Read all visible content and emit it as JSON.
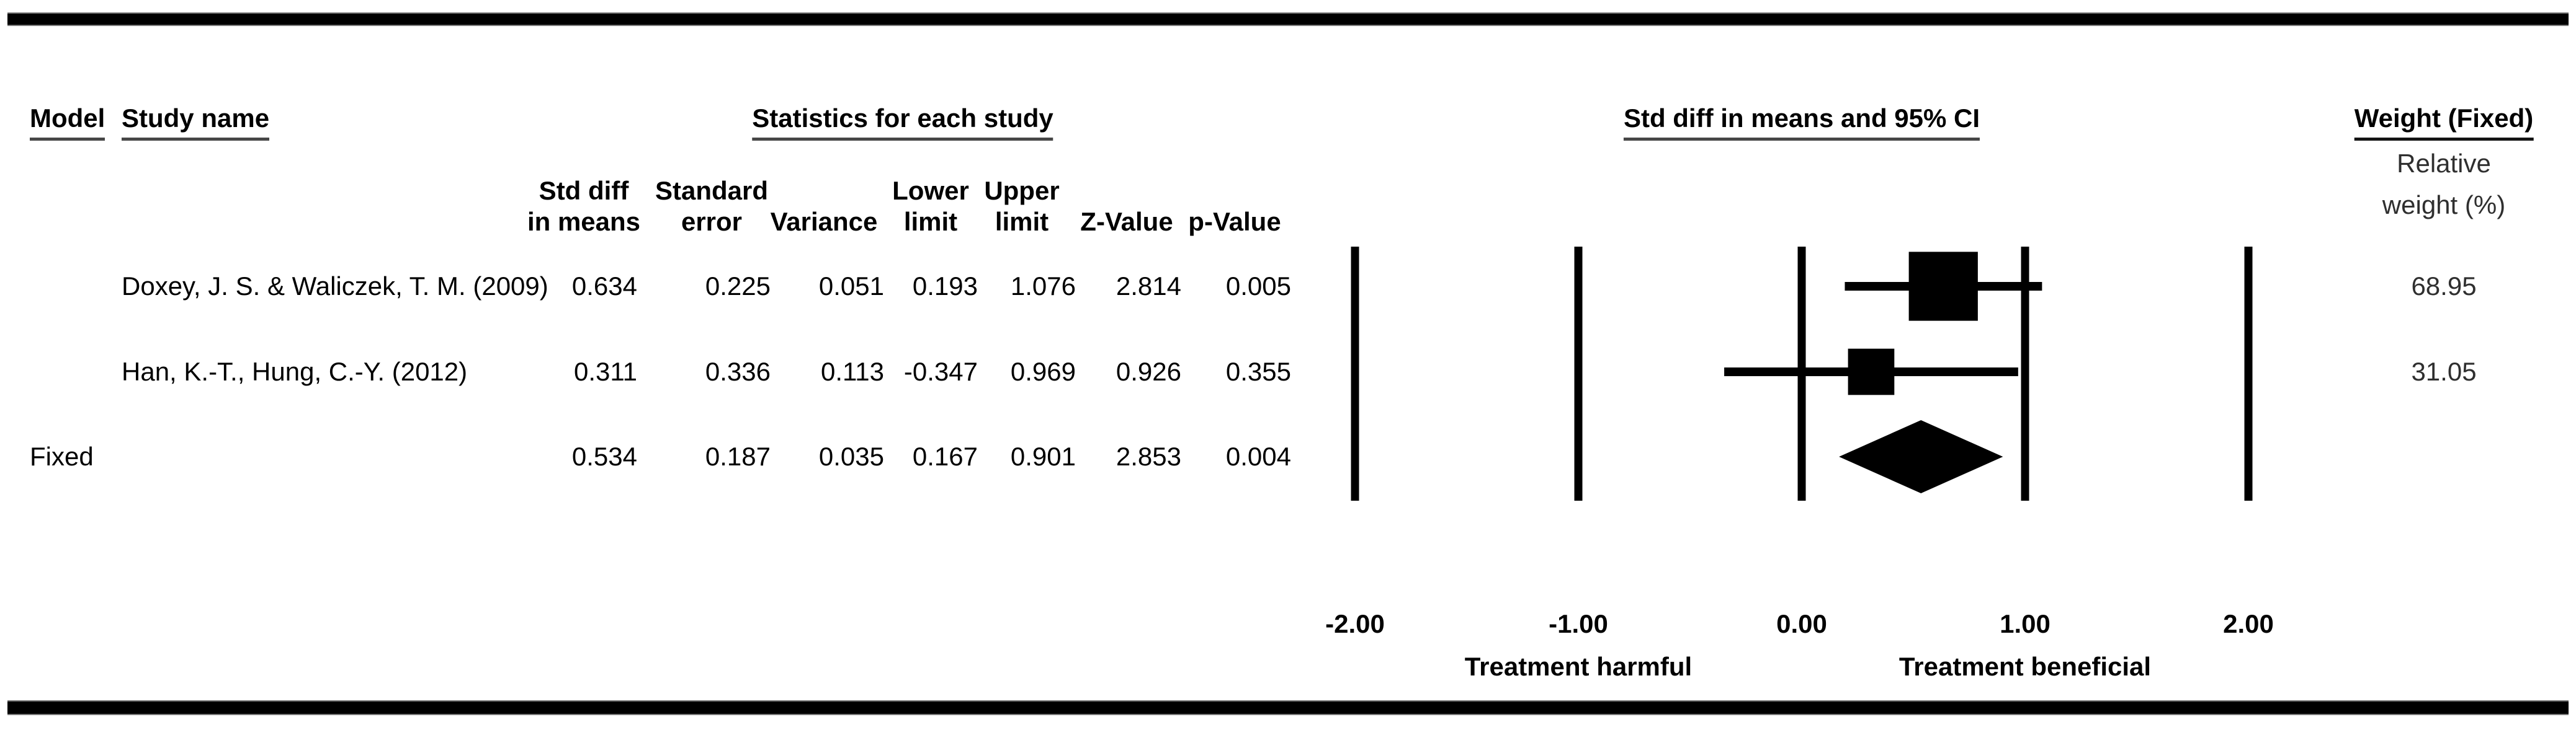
{
  "header": {
    "model": "Model",
    "study_name": "Study name",
    "statistics": "Statistics for each study",
    "ci_plot": "Std diff in means and 95% CI",
    "weight": "Weight (Fixed)",
    "weight_sub_line1": "Relative",
    "weight_sub_line2": "weight (%)"
  },
  "subheaders": {
    "std_diff": {
      "line1": "Std diff",
      "line2": "in means"
    },
    "standard_error": {
      "line1": "Standard",
      "line2": "error"
    },
    "variance": {
      "line1": "",
      "line2": "Variance"
    },
    "lower_limit": {
      "line1": "Lower",
      "line2": "limit"
    },
    "upper_limit": {
      "line1": "Upper",
      "line2": "limit"
    },
    "z_value": {
      "line1": "",
      "line2": "Z-Value"
    },
    "p_value": {
      "line1": "",
      "line2": "p-Value"
    }
  },
  "rows": [
    {
      "model": "",
      "study": "Doxey, J. S. & Waliczek, T. M. (2009)",
      "std_diff": "0.634",
      "standard_error": "0.225",
      "variance": "0.051",
      "lower_limit": "0.193",
      "upper_limit": "1.076",
      "z_value": "2.814",
      "p_value": "0.005",
      "weight": "68.95"
    },
    {
      "model": "",
      "study": "Han, K.-T., Hung, C.-Y. (2012)",
      "std_diff": "0.311",
      "standard_error": "0.336",
      "variance": "0.113",
      "lower_limit": "-0.347",
      "upper_limit": "0.969",
      "z_value": "0.926",
      "p_value": "0.355",
      "weight": "31.05"
    },
    {
      "model": "Fixed",
      "study": "",
      "std_diff": "0.534",
      "standard_error": "0.187",
      "variance": "0.035",
      "lower_limit": "0.167",
      "upper_limit": "0.901",
      "z_value": "2.853",
      "p_value": "0.004",
      "weight": ""
    }
  ],
  "axis": {
    "tick_labels": [
      "-2.00",
      "-1.00",
      "0.00",
      "1.00",
      "2.00"
    ],
    "left_label": "Treatment harmful",
    "right_label": "Treatment beneficial"
  },
  "chart_data": {
    "type": "forest",
    "title": "Std diff in means and 95% CI",
    "effect_measure": "Std diff in means",
    "model": "Fixed",
    "x_axis": {
      "range": [
        -2,
        2
      ],
      "ticks": [
        -2,
        -1,
        0,
        1,
        2
      ],
      "tick_labels": [
        "-2.00",
        "-1.00",
        "0.00",
        "1.00",
        "2.00"
      ]
    },
    "studies": [
      {
        "name": "Doxey, J. S. & Waliczek, T. M. (2009)",
        "std_diff": 0.634,
        "standard_error": 0.225,
        "variance": 0.051,
        "ci": [
          0.193,
          1.076
        ],
        "z_value": 2.814,
        "p_value": 0.005,
        "weight_pct": 68.95,
        "marker": "square"
      },
      {
        "name": "Han, K.-T., Hung, C.-Y. (2012)",
        "std_diff": 0.311,
        "standard_error": 0.336,
        "variance": 0.113,
        "ci": [
          -0.347,
          0.969
        ],
        "z_value": 0.926,
        "p_value": 0.355,
        "weight_pct": 31.05,
        "marker": "square"
      },
      {
        "name": "Fixed",
        "std_diff": 0.534,
        "standard_error": 0.187,
        "variance": 0.035,
        "ci": [
          0.167,
          0.901
        ],
        "z_value": 2.853,
        "p_value": 0.004,
        "marker": "diamond"
      }
    ],
    "annotations": {
      "harmful": "Treatment harmful",
      "beneficial": "Treatment beneficial"
    },
    "grid": false,
    "legend": false
  }
}
